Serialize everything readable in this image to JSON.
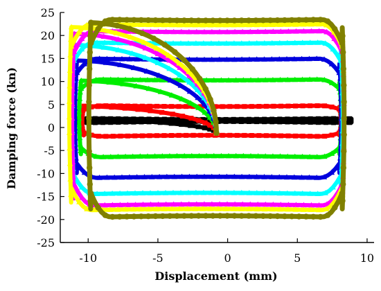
{
  "chart_data": {
    "type": "scatter",
    "title": "",
    "xlabel": "Displacement (mm)",
    "ylabel": "Damping force (kn)",
    "xlim": [
      -12,
      10.5
    ],
    "ylim": [
      -25,
      25
    ],
    "x_ticks": [
      -10,
      -5,
      0,
      5,
      10
    ],
    "y_ticks": [
      -25,
      -20,
      -15,
      -10,
      -5,
      0,
      5,
      10,
      15,
      20,
      25
    ],
    "x_tick_labels": [
      "-10",
      "-5",
      "0",
      "5",
      "10"
    ],
    "y_tick_labels": [
      "-25",
      "-20",
      "-15",
      "-10",
      "-5",
      "0",
      "5",
      "10",
      "15",
      "20",
      "25"
    ],
    "grid": false,
    "legend": "none",
    "series": [
      {
        "color": "#000000",
        "marker": "square",
        "xmin": -10.6,
        "xmax": 8.7,
        "top": 2.0,
        "bottom": 1.0,
        "closing_x": -0.8
      },
      {
        "color": "#ff0000",
        "marker": "square",
        "xmin": -10.3,
        "xmax": 8.0,
        "top": 4.8,
        "bottom": -2.0,
        "closing_x": -0.8
      },
      {
        "color": "#00ee00",
        "marker": "triangle",
        "xmin": -10.5,
        "xmax": 8.0,
        "top": 10.5,
        "bottom": -6.5,
        "closing_x": -0.8
      },
      {
        "color": "#0000dd",
        "marker": "triangle",
        "xmin": -10.8,
        "xmax": 8.0,
        "top": 15.0,
        "bottom": -11.0,
        "closing_x": -0.8
      },
      {
        "color": "#00ffff",
        "marker": "triangle",
        "xmin": -11.0,
        "xmax": 8.1,
        "top": 18.5,
        "bottom": -14.5,
        "closing_x": -0.8
      },
      {
        "color": "#ff00ff",
        "marker": "triangle",
        "xmin": -11.0,
        "xmax": 8.2,
        "top": 21.0,
        "bottom": -17.0,
        "closing_x": -0.8
      },
      {
        "color": "#ffff00",
        "marker": "triangle",
        "xmin": -11.2,
        "xmax": 8.2,
        "top": 22.5,
        "bottom": -18.0,
        "closing_x": -0.8
      },
      {
        "color": "#808000",
        "marker": "circle",
        "xmin": -9.8,
        "xmax": 8.2,
        "top": 23.5,
        "bottom": -19.5,
        "closing_x": -0.8
      }
    ]
  }
}
